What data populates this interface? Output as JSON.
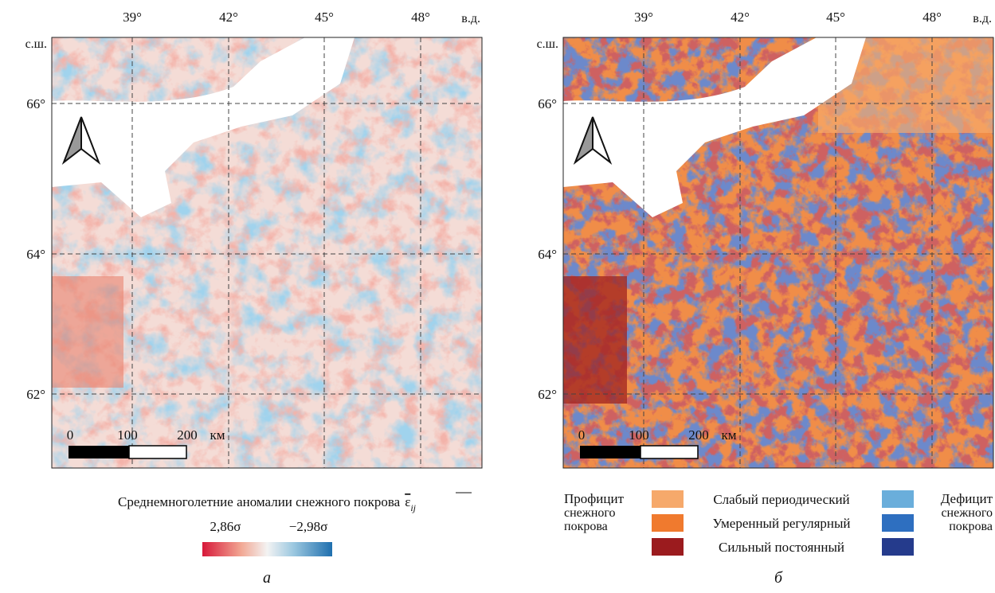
{
  "panels": [
    {
      "label": "а",
      "lon_labels": [
        "39°",
        "42°",
        "45°",
        "48°"
      ],
      "lon_unit": "в.д.",
      "lat_unit": "с.ш.",
      "lat_labels": [
        "66°",
        "64°",
        "62°"
      ],
      "scale_labels": [
        "0",
        "100",
        "200",
        "км"
      ]
    },
    {
      "label": "б",
      "lon_labels": [
        "39°",
        "42°",
        "45°",
        "48°"
      ],
      "lon_unit": "в.д.",
      "lat_unit": "с.ш.",
      "lat_labels": [
        "66°",
        "64°",
        "62°"
      ],
      "scale_labels": [
        "0",
        "100",
        "200",
        "км"
      ]
    }
  ],
  "colorbar": {
    "title": "Среднемноголетние аномалии снежного покрова",
    "symbol": "ε",
    "subscript": "ij",
    "left_label": "2,86σ",
    "right_label": "−2,98σ"
  },
  "legend": {
    "surplus": "Профицит снежного покрова",
    "deficit": "Дефицит снежного покрова",
    "classes": [
      {
        "name": "Слабый периодический",
        "surplus_color": "#f6a96b",
        "deficit_color": "#6aaedb"
      },
      {
        "name": "Умеренный регулярный",
        "surplus_color": "#f07a2e",
        "deficit_color": "#2e6fc0"
      },
      {
        "name": "Сильный постоянный",
        "surplus_color": "#9b1b1e",
        "deficit_color": "#253b8c"
      }
    ]
  }
}
